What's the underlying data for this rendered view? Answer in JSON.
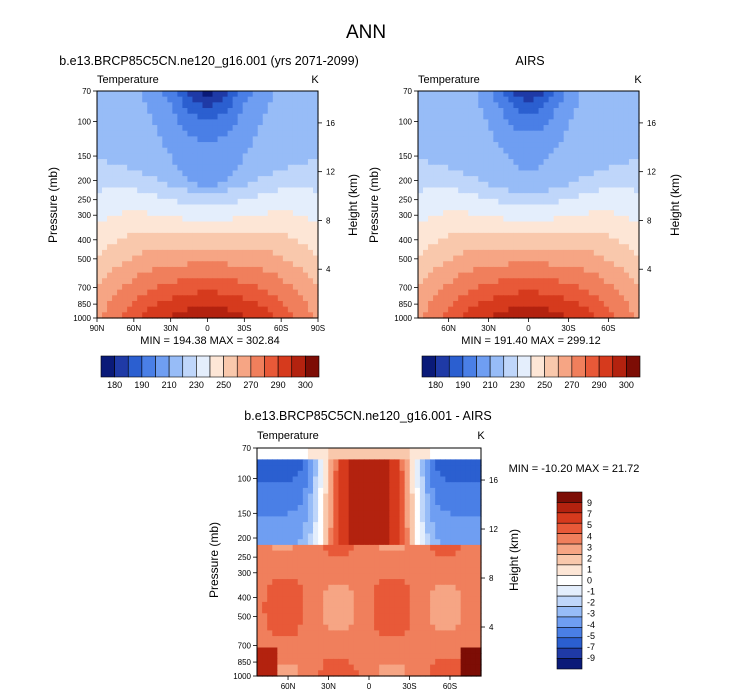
{
  "chart_data": {
    "type": "heatmap",
    "title": "ANN",
    "palette": {
      "abs": [
        "#0a1a78",
        "#1f3aa6",
        "#2b5fd0",
        "#4a7fe6",
        "#6f9ef2",
        "#97bcf7",
        "#bfd6fa",
        "#e4eefc",
        "#fde6d6",
        "#f9c8ac",
        "#f6a584",
        "#f07f5c",
        "#e85938",
        "#d63a1d",
        "#b3220f",
        "#7d0d05"
      ],
      "diff": [
        "#0a1a78",
        "#1f3aa6",
        "#2b5fd0",
        "#4a7fe6",
        "#6f9ef2",
        "#97bcf7",
        "#bfd6fa",
        "#e4eefc",
        "#ffffff",
        "#fde6d6",
        "#f9c8ac",
        "#f6a584",
        "#f07f5c",
        "#e85938",
        "#d63a1d",
        "#b3220f",
        "#7d0d05"
      ]
    },
    "panels": [
      {
        "id": "model",
        "subtitle": "b.e13.BRCP85C5CN.ne120_g16.001 (yrs 2071-2099)",
        "left_label": "Temperature",
        "right_label": "K",
        "xlabel": "",
        "ylabel": "Pressure (mb)",
        "y2label": "Height (km)",
        "xticks": [
          "90N",
          "60N",
          "30N",
          "0",
          "30S",
          "60S",
          "90S"
        ],
        "xlim": [
          90,
          -90
        ],
        "yticks": [
          "70",
          "100",
          "150",
          "200",
          "250",
          "300",
          "400",
          "500",
          "700",
          "850",
          "1000"
        ],
        "ylim": [
          1000,
          70
        ],
        "y2ticks": [
          "16",
          "12",
          "8",
          "4"
        ],
        "stats": "MIN = 194.38   MAX = 302.84",
        "min": 194.38,
        "max": 302.84,
        "colorbar_labels": [
          "180",
          "190",
          "210",
          "230",
          "250",
          "270",
          "290",
          "300"
        ]
      },
      {
        "id": "obs",
        "subtitle": "AIRS",
        "left_label": "Temperature",
        "right_label": "K",
        "xlabel": "",
        "ylabel": "Pressure (mb)",
        "y2label": "Height (km)",
        "xticks": [
          "60N",
          "30N",
          "0",
          "30S",
          "60S"
        ],
        "xlim": [
          83,
          -83
        ],
        "yticks": [
          "70",
          "100",
          "150",
          "200",
          "250",
          "300",
          "400",
          "500",
          "700",
          "850",
          "1000"
        ],
        "ylim": [
          1000,
          70
        ],
        "y2ticks": [
          "16",
          "12",
          "8",
          "4"
        ],
        "stats": "MIN = 191.40   MAX = 299.12",
        "min": 191.4,
        "max": 299.12,
        "colorbar_labels": [
          "180",
          "190",
          "210",
          "230",
          "250",
          "270",
          "290",
          "300"
        ]
      },
      {
        "id": "diff",
        "subtitle": "b.e13.BRCP85C5CN.ne120_g16.001 - AIRS",
        "left_label": "Temperature",
        "right_label": "K",
        "xlabel": "",
        "ylabel": "Pressure (mb)",
        "y2label": "Height (km)",
        "xticks": [
          "60N",
          "30N",
          "0",
          "30S",
          "60S"
        ],
        "xlim": [
          83,
          -83
        ],
        "yticks": [
          "70",
          "100",
          "150",
          "200",
          "250",
          "300",
          "400",
          "500",
          "700",
          "850",
          "1000"
        ],
        "ylim": [
          1000,
          70
        ],
        "y2ticks": [
          "16",
          "12",
          "8",
          "4"
        ],
        "stats": "MIN = -10.20   MAX = 21.72",
        "min": -10.2,
        "max": 21.72,
        "colorbar_labels": [
          "9",
          "7",
          "5",
          "4",
          "3",
          "2",
          "1",
          "0",
          "-1",
          "-2",
          "-3",
          "-4",
          "-5",
          "-7",
          "-9"
        ]
      }
    ]
  }
}
